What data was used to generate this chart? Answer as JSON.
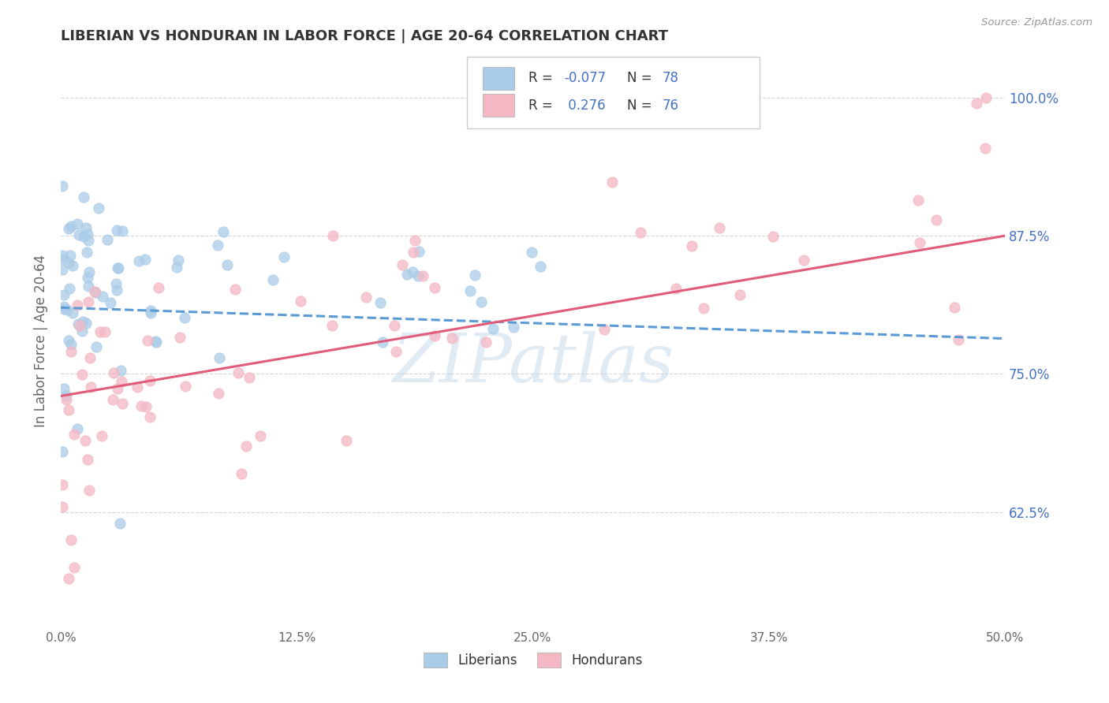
{
  "title": "LIBERIAN VS HONDURAN IN LABOR FORCE | AGE 20-64 CORRELATION CHART",
  "source": "Source: ZipAtlas.com",
  "ylabel": "In Labor Force | Age 20-64",
  "xlim": [
    0.0,
    0.5
  ],
  "ylim": [
    0.52,
    1.04
  ],
  "xtick_labels": [
    "0.0%",
    "12.5%",
    "25.0%",
    "37.5%",
    "50.0%"
  ],
  "xtick_vals": [
    0.0,
    0.125,
    0.25,
    0.375,
    0.5
  ],
  "ytick_labels": [
    "62.5%",
    "75.0%",
    "87.5%",
    "100.0%"
  ],
  "ytick_vals": [
    0.625,
    0.75,
    0.875,
    1.0
  ],
  "liberian_color": "#aacce8",
  "honduran_color": "#f4b8c4",
  "liberian_line_color": "#5b9bd5",
  "honduran_line_color": "#e05c7a",
  "r_liberian": -0.077,
  "n_liberian": 78,
  "r_honduran": 0.276,
  "n_honduran": 76,
  "background_color": "#ffffff",
  "grid_color": "#cccccc",
  "watermark": "ZIPatlas",
  "label_color": "#4472c4",
  "title_color": "#333333",
  "axis_label_color": "#666666"
}
